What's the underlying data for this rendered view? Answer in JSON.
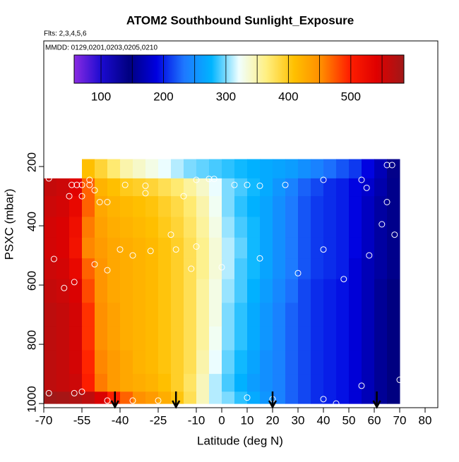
{
  "chart_data": {
    "type": "heatmap",
    "title": "ATOM2 Southbound Sunlight_Exposure",
    "subtitle": "Flts: 2,3,4,5,6",
    "annotation": "MMDD: 0129,0201,0203,0205,0210",
    "x_label": "Latitude (deg N)",
    "y_label": "PSXC (mbar)",
    "xlim": [
      -70,
      85
    ],
    "ylim": [
      1014,
      -224
    ],
    "xticks": [
      -70,
      -55,
      -40,
      -25,
      -10,
      0,
      10,
      20,
      30,
      40,
      50,
      60,
      70,
      80
    ],
    "yticks": [
      200,
      400,
      600,
      800,
      1000
    ],
    "clim": [
      57,
      585
    ],
    "cticks": [
      100,
      200,
      300,
      400,
      500
    ],
    "cminor": [
      150,
      250,
      350,
      450,
      550
    ],
    "colorscale": [
      "#8a2be2",
      "#1a0ad0",
      "#000080",
      "#0000e0",
      "#1e78ff",
      "#00b4ff",
      "#f0ffff",
      "#ffef80",
      "#ffc000",
      "#ff8c00",
      "#ff2000",
      "#e00000",
      "#a01818"
    ],
    "lat_edges": [
      -70,
      -65,
      -60,
      -55,
      -50,
      -45,
      -40,
      -35,
      -30,
      -25,
      -20,
      -15,
      -10,
      -5,
      0,
      5,
      10,
      15,
      20,
      25,
      30,
      35,
      40,
      45,
      50,
      55,
      60,
      65,
      70
    ],
    "p_edges": [
      175,
      240,
      300,
      370,
      440,
      510,
      580,
      660,
      740,
      820,
      900,
      960,
      1000
    ],
    "z": [
      [
        null,
        null,
        null,
        410,
        390,
        370,
        350,
        340,
        330,
        320,
        310,
        300,
        295,
        290,
        285,
        280,
        275,
        270,
        265,
        260,
        250,
        240,
        230,
        220,
        210,
        190,
        170,
        140
      ],
      [
        560,
        555,
        540,
        470,
        420,
        410,
        400,
        395,
        390,
        380,
        370,
        355,
        340,
        320,
        300,
        290,
        280,
        270,
        255,
        240,
        225,
        215,
        205,
        200,
        190,
        180,
        165,
        150
      ],
      [
        555,
        550,
        530,
        470,
        430,
        420,
        415,
        410,
        405,
        395,
        385,
        370,
        350,
        325,
        300,
        285,
        275,
        265,
        250,
        235,
        220,
        210,
        205,
        200,
        190,
        175,
        160,
        150
      ],
      [
        550,
        545,
        520,
        460,
        435,
        425,
        420,
        415,
        410,
        400,
        390,
        375,
        355,
        330,
        305,
        290,
        280,
        265,
        250,
        235,
        220,
        210,
        205,
        200,
        190,
        175,
        160,
        150
      ],
      [
        550,
        545,
        515,
        455,
        440,
        430,
        425,
        420,
        415,
        405,
        395,
        380,
        360,
        335,
        310,
        295,
        280,
        265,
        250,
        235,
        220,
        210,
        205,
        200,
        190,
        175,
        160,
        150
      ],
      [
        555,
        550,
        530,
        470,
        445,
        430,
        425,
        420,
        415,
        405,
        395,
        380,
        360,
        335,
        310,
        290,
        280,
        265,
        250,
        235,
        220,
        210,
        205,
        200,
        185,
        170,
        160,
        150
      ],
      [
        560,
        555,
        545,
        480,
        445,
        430,
        425,
        420,
        415,
        405,
        395,
        380,
        355,
        330,
        305,
        290,
        275,
        260,
        245,
        230,
        215,
        205,
        200,
        195,
        185,
        170,
        155,
        145
      ],
      [
        565,
        560,
        550,
        490,
        450,
        435,
        425,
        420,
        415,
        405,
        395,
        380,
        355,
        330,
        300,
        285,
        270,
        255,
        240,
        225,
        215,
        205,
        200,
        195,
        185,
        170,
        155,
        145
      ],
      [
        565,
        560,
        550,
        490,
        450,
        435,
        425,
        420,
        415,
        405,
        395,
        380,
        355,
        325,
        300,
        285,
        270,
        255,
        240,
        225,
        215,
        205,
        200,
        195,
        185,
        170,
        155,
        145
      ],
      [
        565,
        560,
        550,
        495,
        455,
        440,
        430,
        420,
        415,
        405,
        395,
        380,
        350,
        320,
        295,
        280,
        265,
        250,
        240,
        225,
        215,
        205,
        200,
        195,
        185,
        170,
        155,
        145
      ],
      [
        565,
        560,
        555,
        500,
        460,
        440,
        430,
        425,
        420,
        410,
        395,
        375,
        345,
        310,
        290,
        275,
        260,
        250,
        240,
        225,
        215,
        205,
        200,
        195,
        185,
        170,
        155,
        145
      ],
      [
        585,
        580,
        575,
        565,
        545,
        500,
        470,
        450,
        440,
        425,
        405,
        380,
        345,
        310,
        300,
        285,
        270,
        255,
        240,
        225,
        215,
        205,
        200,
        195,
        185,
        170,
        155,
        145
      ]
    ],
    "points": {
      "x": [
        -68,
        -59,
        -57,
        -55,
        -52,
        -52,
        -38,
        -30,
        -10,
        -5,
        -3,
        5,
        10,
        15,
        25,
        40,
        55,
        57,
        65,
        67,
        -60,
        -55,
        -50,
        -48,
        -45,
        -30,
        -15,
        -20,
        -18,
        -10,
        -45,
        -35,
        -62,
        -58,
        -66,
        -50,
        0,
        15,
        30,
        40,
        48,
        58,
        68,
        70,
        55,
        -68,
        -58,
        -55,
        -45,
        -35,
        -25,
        10,
        20,
        40,
        45,
        65,
        63,
        -12,
        -28,
        -40
      ],
      "y": [
        240,
        262,
        262,
        262,
        245,
        262,
        262,
        265,
        245,
        242,
        242,
        262,
        262,
        265,
        262,
        245,
        245,
        272,
        195,
        195,
        300,
        300,
        280,
        320,
        320,
        290,
        300,
        430,
        480,
        470,
        550,
        500,
        610,
        590,
        512,
        530,
        540,
        510,
        560,
        480,
        580,
        500,
        430,
        920,
        940,
        965,
        965,
        960,
        990,
        990,
        990,
        980,
        985,
        985,
        1000,
        320,
        395,
        545,
        485,
        480
      ]
    },
    "flight_markers": [
      -42,
      -18,
      20,
      61
    ]
  }
}
